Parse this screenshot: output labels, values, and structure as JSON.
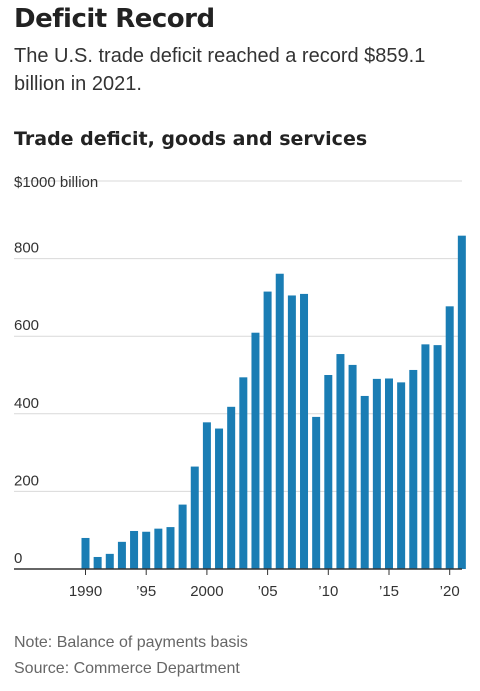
{
  "headline": "Deficit Record",
  "dek": "The U.S. trade deficit reached a record $859.1 billion in 2021.",
  "note": "Note: Balance of payments basis",
  "source": "Source: Commerce Department",
  "colors": {
    "bar": "#1a7db4",
    "grid": "#d9d9d9",
    "axis": "#333333"
  },
  "chart_data": {
    "type": "bar",
    "title": "Trade deficit, goods and services",
    "ylabel": "$1000 billion",
    "ylim": [
      0,
      1000
    ],
    "yticks": [
      0,
      200,
      400,
      600,
      800
    ],
    "yticklabels": [
      "0",
      "200",
      "400",
      "600",
      "800"
    ],
    "xticks": [
      1990,
      1995,
      2000,
      2005,
      2010,
      2015,
      2020
    ],
    "xticklabels": [
      "1990",
      "’95",
      "2000",
      "’05",
      "’10",
      "’15",
      "’20"
    ],
    "grid": true,
    "categories": [
      1990,
      1991,
      1992,
      1993,
      1994,
      1995,
      1996,
      1997,
      1998,
      1999,
      2000,
      2001,
      2002,
      2003,
      2004,
      2005,
      2006,
      2007,
      2008,
      2009,
      2010,
      2011,
      2012,
      2013,
      2014,
      2015,
      2016,
      2017,
      2018,
      2019,
      2020,
      2021
    ],
    "values": [
      80,
      31,
      39,
      70,
      98,
      96,
      104,
      108,
      166,
      264,
      378,
      362,
      418,
      494,
      609,
      715,
      761,
      705,
      709,
      392,
      500,
      554,
      526,
      446,
      490,
      491,
      481,
      513,
      579,
      577,
      677,
      859.1
    ]
  }
}
